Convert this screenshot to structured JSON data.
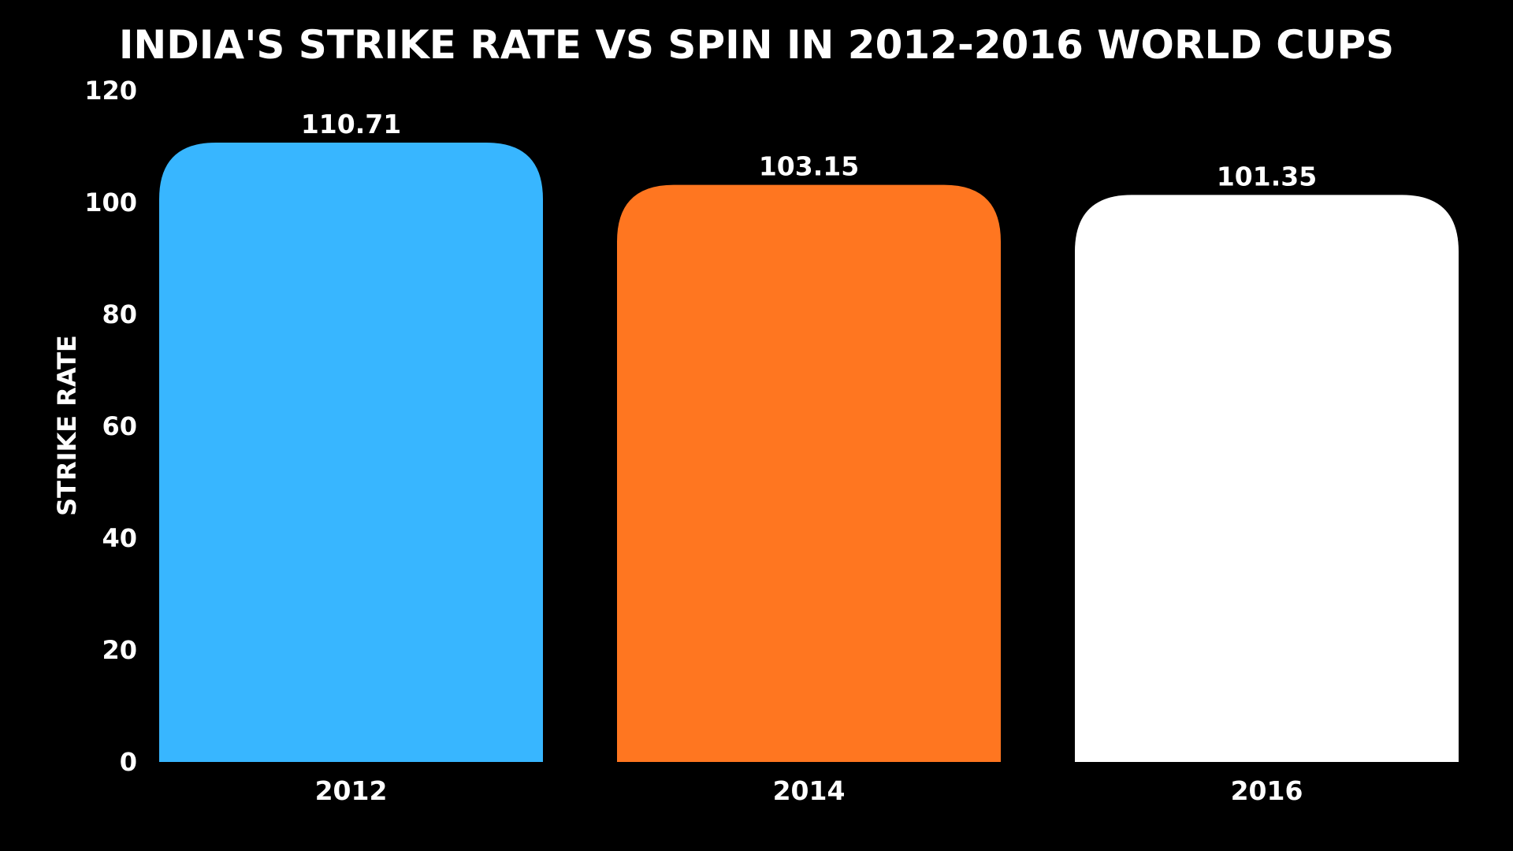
{
  "chart_data": {
    "type": "bar",
    "title": "INDIA'S STRIKE RATE VS SPIN IN 2012-2016 WORLD CUPS",
    "xlabel": "",
    "ylabel": "STRIKE RATE",
    "categories": [
      "2012",
      "2014",
      "2016"
    ],
    "values": [
      110.71,
      103.15,
      101.35
    ],
    "value_labels": [
      "110.71",
      "103.15",
      "101.35"
    ],
    "colors": [
      "#38b6ff",
      "#ff7620",
      "#ffffff"
    ],
    "ylim": [
      0,
      120
    ],
    "yticks": [
      "0",
      "20",
      "40",
      "60",
      "80",
      "100",
      "120"
    ],
    "grid": false,
    "legend": "none"
  },
  "theme": {
    "background": "#000000",
    "text": "#ffffff"
  }
}
